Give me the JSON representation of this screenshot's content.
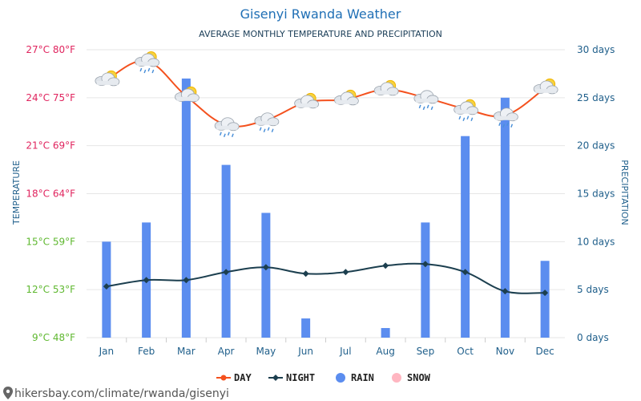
{
  "chart_data": {
    "type": "bar+line",
    "title": "Gisenyi Rwanda Weather",
    "subtitle": "AVERAGE MONTHLY TEMPERATURE AND PRECIPITATION",
    "categories": [
      "Jan",
      "Feb",
      "Mar",
      "Apr",
      "May",
      "Jun",
      "Jul",
      "Aug",
      "Sep",
      "Oct",
      "Nov",
      "Dec"
    ],
    "series": [
      {
        "name": "DAY",
        "type": "line",
        "axis": "left",
        "color": "#f4511e",
        "values": [
          25.1,
          26.3,
          24.1,
          22.3,
          22.6,
          23.7,
          23.9,
          24.5,
          24.0,
          23.3,
          22.9,
          24.6
        ]
      },
      {
        "name": "NIGHT",
        "type": "line",
        "axis": "left",
        "color": "#1c3f4f",
        "values": [
          12.2,
          12.6,
          12.6,
          13.1,
          13.4,
          13.0,
          13.1,
          13.5,
          13.6,
          13.1,
          11.9,
          11.8
        ]
      },
      {
        "name": "RAIN",
        "type": "bar",
        "axis": "right",
        "color": "#5b8def",
        "values": [
          10,
          12,
          27,
          18,
          13,
          2,
          0,
          1,
          12,
          21,
          25,
          8
        ]
      },
      {
        "name": "SNOW",
        "type": "bar",
        "axis": "right",
        "color": "#ffb6c1",
        "values": [
          0,
          0,
          0,
          0,
          0,
          0,
          0,
          0,
          0,
          0,
          0,
          0
        ]
      }
    ],
    "left_axis": {
      "label": "TEMPERATURE",
      "ylim": [
        9,
        27
      ],
      "ticks": [
        {
          "value": 27,
          "label": "27°C 80°F",
          "color": "#e0245e"
        },
        {
          "value": 24,
          "label": "24°C 75°F",
          "color": "#e0245e"
        },
        {
          "value": 21,
          "label": "21°C 69°F",
          "color": "#e0245e"
        },
        {
          "value": 18,
          "label": "18°C 64°F",
          "color": "#e0245e"
        },
        {
          "value": 15,
          "label": "15°C 59°F",
          "color": "#5fb830"
        },
        {
          "value": 12,
          "label": "12°C 53°F",
          "color": "#5fb830"
        },
        {
          "value": 9,
          "label": "9°C 48°F",
          "color": "#5fb830"
        }
      ]
    },
    "right_axis": {
      "label": "PRECIPITATION",
      "ylim": [
        0,
        30
      ],
      "ticks": [
        {
          "value": 30,
          "label": "30 days"
        },
        {
          "value": 25,
          "label": "25 days"
        },
        {
          "value": 20,
          "label": "20 days"
        },
        {
          "value": 15,
          "label": "15 days"
        },
        {
          "value": 10,
          "label": "10 days"
        },
        {
          "value": 5,
          "label": "5 days"
        },
        {
          "value": 0,
          "label": "0 days"
        }
      ]
    },
    "weather_icons": [
      "sun-cloud",
      "sun-cloud-rain",
      "sun-cloud",
      "cloud-rain",
      "cloud-rain",
      "sun-cloud",
      "sun-cloud",
      "sun-cloud",
      "cloud-rain",
      "sun-cloud-rain",
      "cloud-rain",
      "sun-cloud"
    ],
    "grid": true,
    "legend_position": "bottom-center"
  },
  "source": "hikersbay.com/climate/rwanda/gisenyi"
}
